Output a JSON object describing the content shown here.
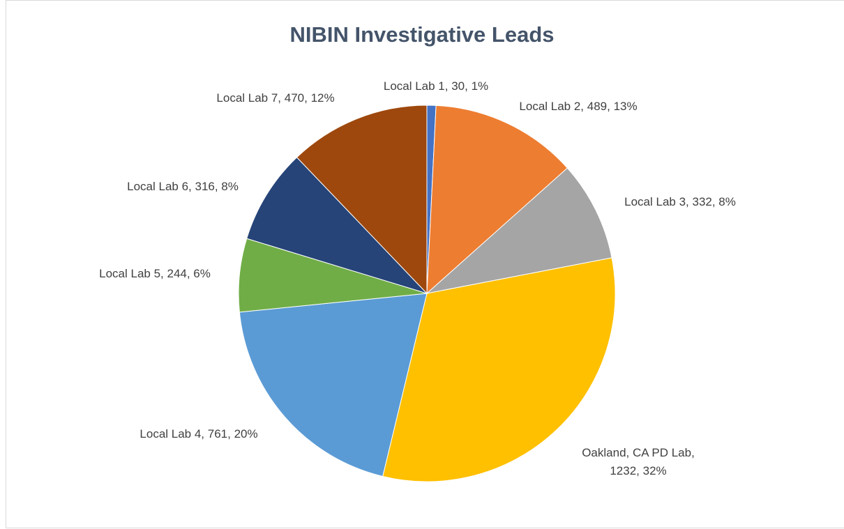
{
  "chart_data": {
    "type": "pie",
    "title": "NIBIN Investigative Leads",
    "values": [
      30,
      489,
      332,
      1232,
      761,
      244,
      316,
      470
    ],
    "value_labels": [
      "Local Lab 1, 30, 1%",
      "Local Lab 2, 489, 13%",
      "Local Lab 3, 332, 8%",
      "Oakland, CA PD Lab, 1232, 32%",
      "Local Lab 4, 761, 20%",
      "Local Lab 5, 244, 6%",
      "Local Lab 6, 316, 8%",
      "Local Lab 7, 470, 12%"
    ],
    "colors": [
      "#4472c4",
      "#ed7d31",
      "#a5a5a5",
      "#ffc000",
      "#5b9bd5",
      "#70ad47",
      "#264478",
      "#9e480e"
    ]
  }
}
